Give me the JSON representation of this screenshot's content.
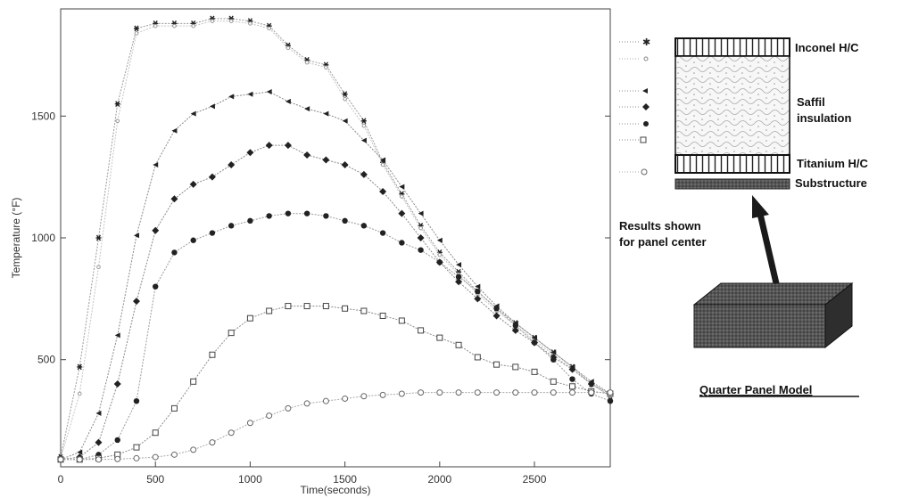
{
  "chart_data": {
    "type": "line",
    "xlabel": "Time(seconds)",
    "ylabel": "Temperature (°F)",
    "xlim": [
      0,
      2900
    ],
    "ylim": [
      60,
      1940
    ],
    "xticks": [
      0,
      500,
      1000,
      1500,
      2000,
      2500
    ],
    "yticks": [
      500,
      1000,
      1500
    ],
    "grid": false,
    "series": [
      {
        "marker": "asterisk",
        "x": [
          0,
          100,
          200,
          300,
          400,
          500,
          600,
          700,
          800,
          900,
          1000,
          1100,
          1200,
          1300,
          1400,
          1500,
          1600,
          1700,
          1800,
          1900,
          2000,
          2100,
          2200,
          2300,
          2400,
          2500,
          2600,
          2700,
          2800,
          2900
        ],
        "values": [
          100,
          470,
          1000,
          1550,
          1860,
          1880,
          1880,
          1880,
          1900,
          1900,
          1890,
          1870,
          1790,
          1730,
          1710,
          1590,
          1480,
          1310,
          1180,
          1050,
          940,
          860,
          780,
          710,
          650,
          590,
          530,
          470,
          400,
          350
        ]
      },
      {
        "marker": "small-open",
        "x": [
          0,
          100,
          200,
          300,
          400,
          500,
          600,
          700,
          800,
          900,
          1000,
          1100,
          1200,
          1300,
          1400,
          1500,
          1600,
          1700,
          1800,
          1900,
          2000,
          2100,
          2200,
          2300,
          2400,
          2500,
          2600,
          2700,
          2800,
          2900
        ],
        "values": [
          95,
          360,
          880,
          1480,
          1840,
          1870,
          1870,
          1870,
          1890,
          1890,
          1880,
          1860,
          1780,
          1720,
          1700,
          1570,
          1460,
          1300,
          1170,
          1040,
          930,
          850,
          770,
          700,
          640,
          580,
          520,
          460,
          400,
          350
        ]
      },
      {
        "marker": "triangle",
        "x": [
          0,
          100,
          200,
          300,
          400,
          500,
          600,
          700,
          800,
          900,
          1000,
          1100,
          1200,
          1300,
          1400,
          1500,
          1600,
          1700,
          1800,
          1900,
          2000,
          2100,
          2200,
          2300,
          2400,
          2500,
          2600,
          2700,
          2800,
          2900
        ],
        "values": [
          90,
          120,
          280,
          600,
          1010,
          1300,
          1440,
          1510,
          1540,
          1580,
          1590,
          1600,
          1560,
          1530,
          1510,
          1480,
          1400,
          1320,
          1210,
          1100,
          990,
          890,
          800,
          720,
          650,
          590,
          530,
          470,
          410,
          360
        ]
      },
      {
        "marker": "diamond",
        "x": [
          0,
          100,
          200,
          300,
          400,
          500,
          600,
          700,
          800,
          900,
          1000,
          1100,
          1200,
          1300,
          1400,
          1500,
          1600,
          1700,
          1800,
          1900,
          2000,
          2100,
          2200,
          2300,
          2400,
          2500,
          2600,
          2700,
          2800,
          2900
        ],
        "values": [
          90,
          100,
          160,
          400,
          740,
          1030,
          1160,
          1220,
          1250,
          1300,
          1350,
          1380,
          1380,
          1340,
          1320,
          1300,
          1260,
          1190,
          1100,
          1000,
          900,
          820,
          750,
          680,
          620,
          570,
          510,
          460,
          400,
          360
        ]
      },
      {
        "marker": "filled-circle",
        "x": [
          0,
          100,
          200,
          300,
          400,
          500,
          600,
          700,
          800,
          900,
          1000,
          1100,
          1200,
          1300,
          1400,
          1500,
          1600,
          1700,
          1800,
          1900,
          2000,
          2100,
          2200,
          2300,
          2400,
          2500,
          2600,
          2700,
          2800,
          2900
        ],
        "values": [
          90,
          90,
          110,
          170,
          330,
          800,
          940,
          990,
          1020,
          1050,
          1070,
          1090,
          1100,
          1100,
          1090,
          1070,
          1050,
          1020,
          980,
          950,
          900,
          840,
          780,
          710,
          640,
          570,
          500,
          420,
          360,
          330
        ]
      },
      {
        "marker": "open-square",
        "x": [
          0,
          100,
          200,
          300,
          400,
          500,
          600,
          700,
          800,
          900,
          1000,
          1100,
          1200,
          1300,
          1400,
          1500,
          1600,
          1700,
          1800,
          1900,
          2000,
          2100,
          2200,
          2300,
          2400,
          2500,
          2600,
          2700,
          2800,
          2900
        ],
        "values": [
          90,
          90,
          95,
          110,
          140,
          200,
          300,
          410,
          520,
          610,
          670,
          700,
          720,
          720,
          720,
          710,
          700,
          680,
          660,
          620,
          590,
          560,
          510,
          480,
          470,
          450,
          410,
          390,
          370,
          360
        ]
      },
      {
        "marker": "open-circle",
        "x": [
          0,
          100,
          200,
          300,
          400,
          500,
          600,
          700,
          800,
          900,
          1000,
          1100,
          1200,
          1300,
          1400,
          1500,
          1600,
          1700,
          1800,
          1900,
          2000,
          2100,
          2200,
          2300,
          2400,
          2500,
          2600,
          2700,
          2800,
          2900
        ],
        "values": [
          90,
          90,
          90,
          92,
          95,
          100,
          110,
          130,
          160,
          200,
          240,
          270,
          300,
          320,
          330,
          340,
          350,
          355,
          360,
          365,
          365,
          365,
          365,
          365,
          365,
          365,
          365,
          365,
          365,
          365
        ]
      }
    ]
  },
  "diagram": {
    "layers": [
      "Inconel H/C",
      "Saffil",
      "insulation",
      "Titanium H/C",
      "Substructure"
    ],
    "results_note": [
      "Results shown",
      "for panel center"
    ],
    "model_label": "Quarter Panel Model"
  }
}
